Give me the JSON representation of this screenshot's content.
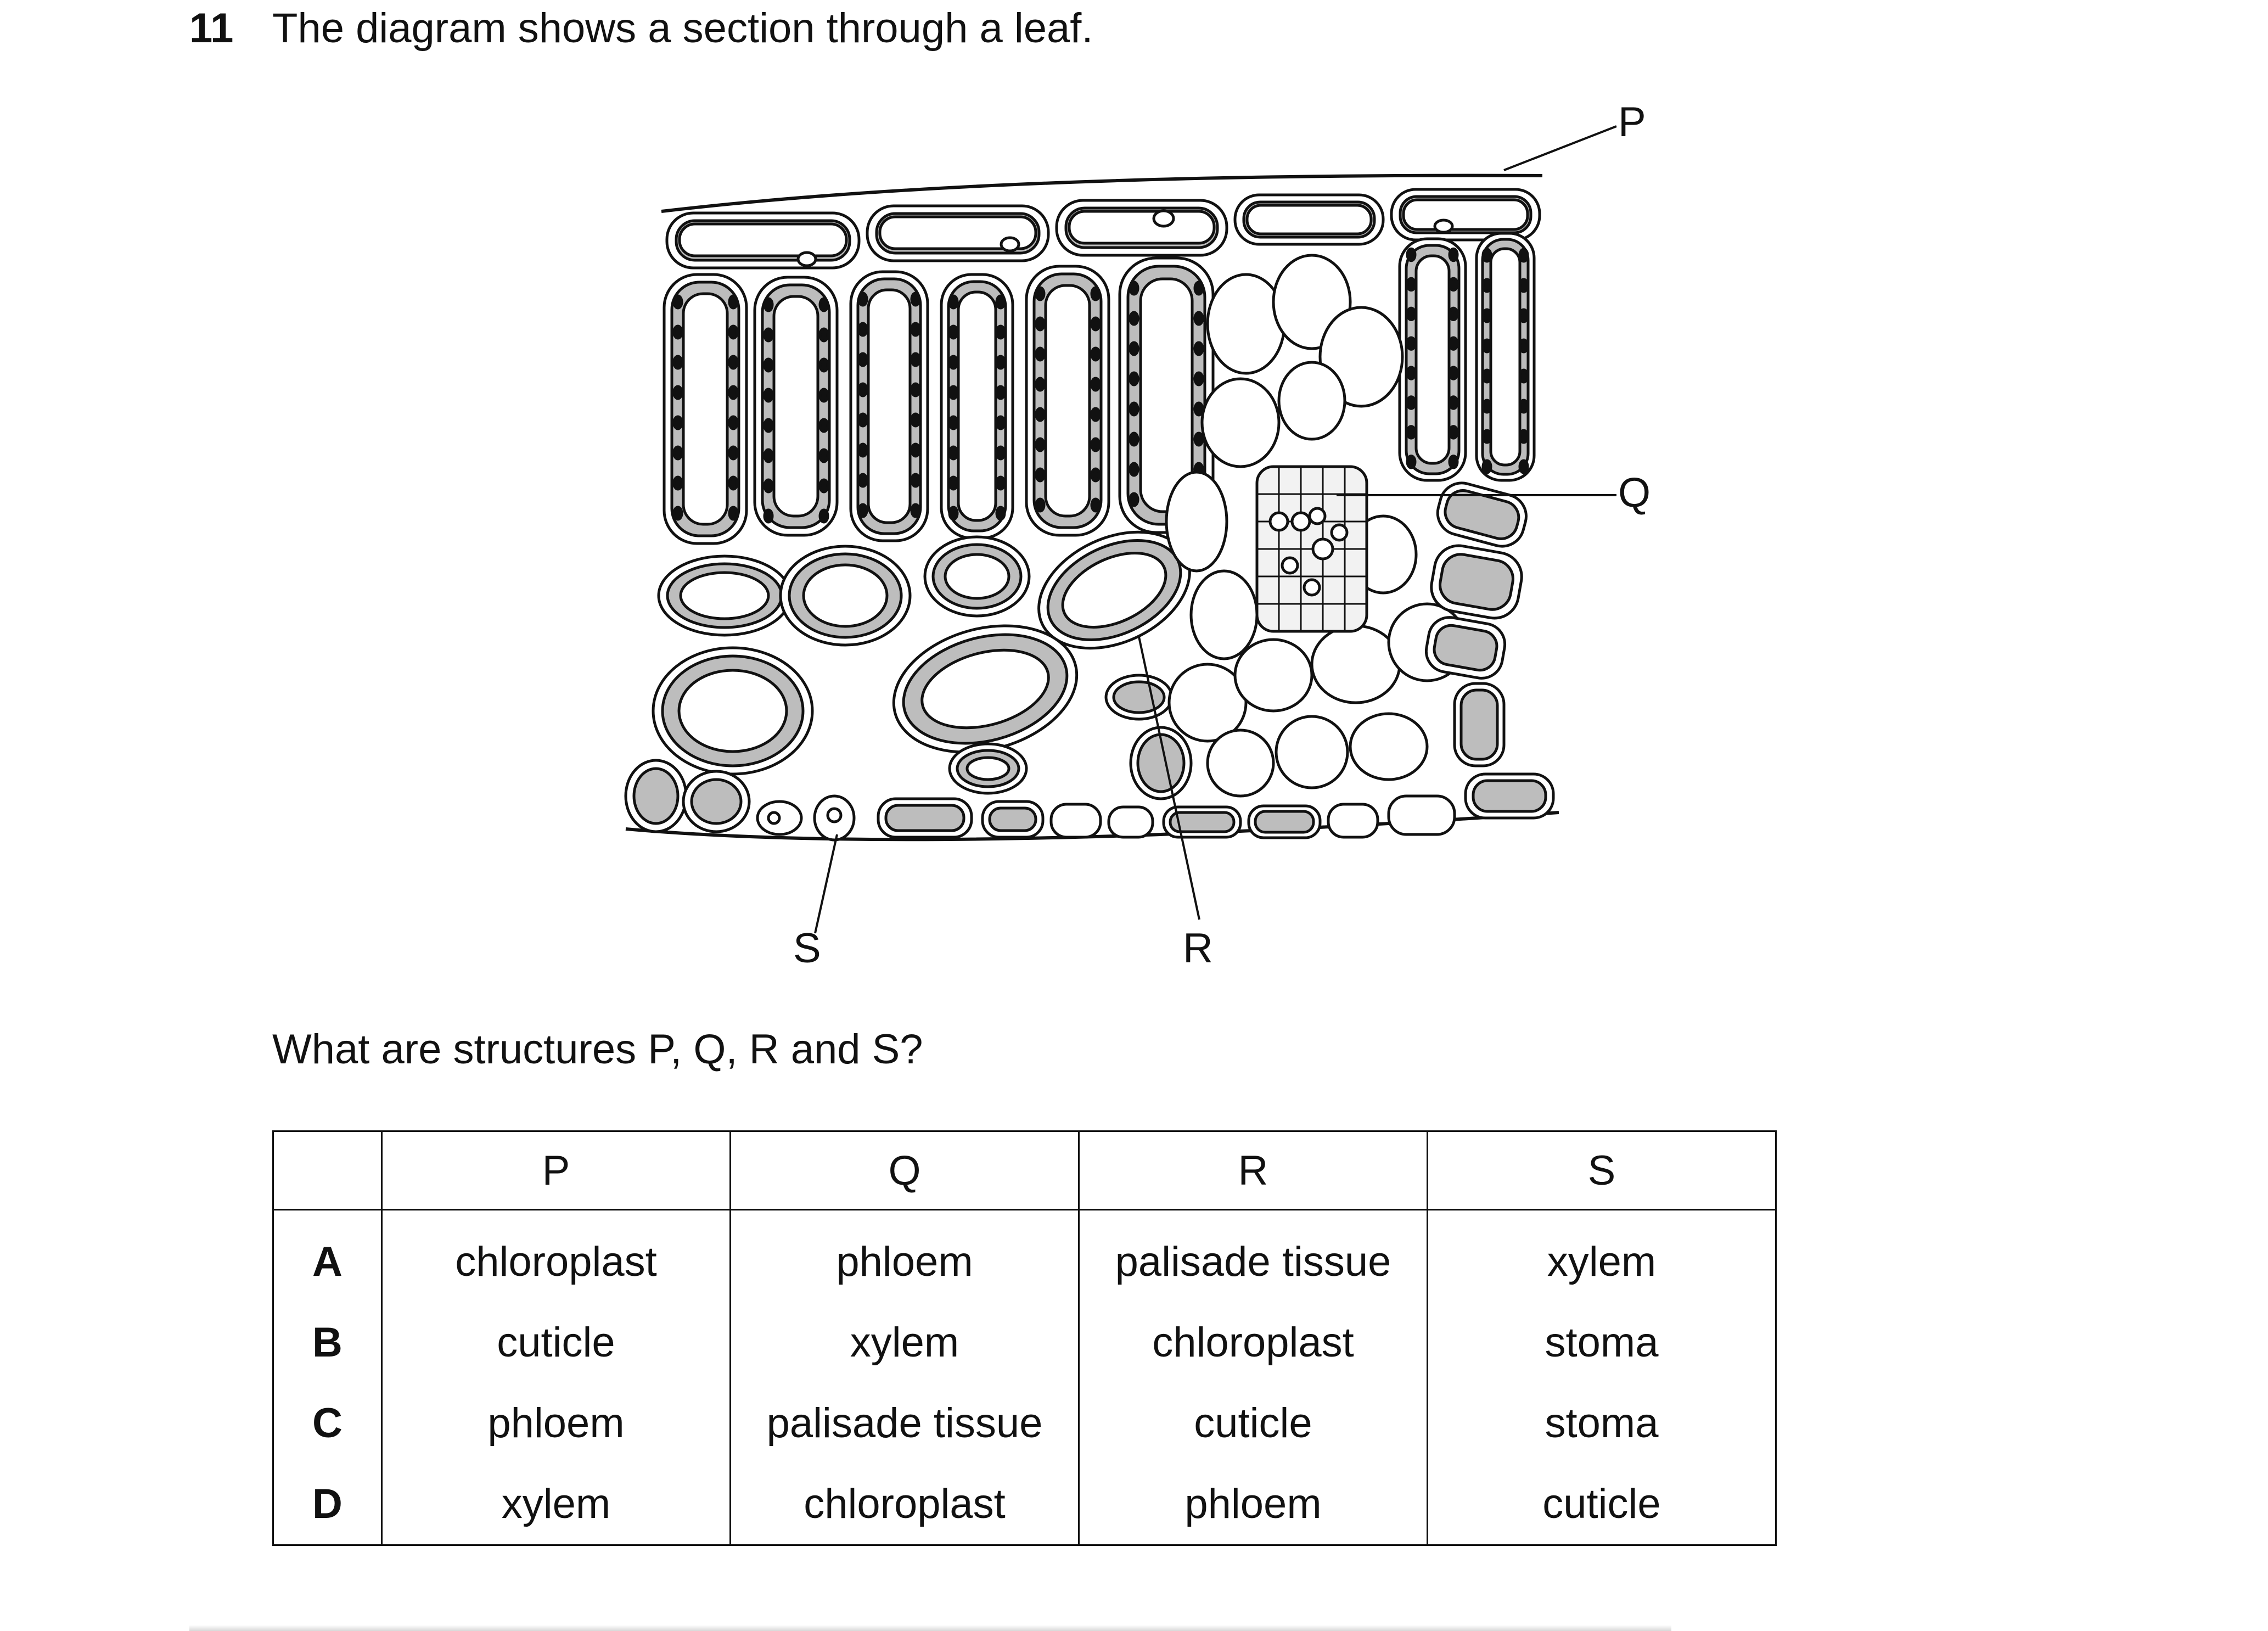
{
  "question": {
    "number": "11",
    "text": "The diagram shows a section through a leaf.",
    "prompt": "What are structures P, Q, R and S?"
  },
  "diagram": {
    "labels": {
      "p": "P",
      "q": "Q",
      "r": "R",
      "s": "S"
    }
  },
  "table": {
    "headers": [
      "",
      "P",
      "Q",
      "R",
      "S"
    ],
    "rows": [
      {
        "key": "A",
        "cells": [
          "chloroplast",
          "phloem",
          "palisade tissue",
          "xylem"
        ]
      },
      {
        "key": "B",
        "cells": [
          "cuticle",
          "xylem",
          "chloroplast",
          "stoma"
        ]
      },
      {
        "key": "C",
        "cells": [
          "phloem",
          "palisade tissue",
          "cuticle",
          "stoma"
        ]
      },
      {
        "key": "D",
        "cells": [
          "xylem",
          "chloroplast",
          "phloem",
          "cuticle"
        ]
      }
    ]
  }
}
